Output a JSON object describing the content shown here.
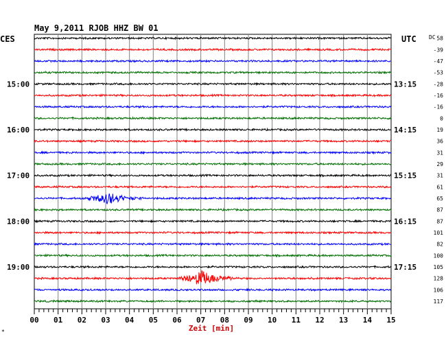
{
  "header": {
    "title": "May 9,2011   RJOB HHZ BW 01",
    "left_tz": "CES",
    "right_tz": "UTC",
    "dc_label": "DC",
    "footer_mark": "*"
  },
  "chart_data": {
    "type": "line",
    "title": "May 9,2011   RJOB HHZ BW 01",
    "xlabel": "Zeit [min]",
    "ylabel": "",
    "xlim": [
      0,
      15
    ],
    "x_ticks": [
      "00",
      "01",
      "02",
      "03",
      "04",
      "05",
      "06",
      "07",
      "08",
      "09",
      "10",
      "11",
      "12",
      "13",
      "14",
      "15"
    ],
    "grid": true,
    "trace_colors": [
      "#000000",
      "#ff0000",
      "#0000ff",
      "#007000"
    ],
    "left_time_labels": [
      {
        "row": 4,
        "label": "15:00"
      },
      {
        "row": 8,
        "label": "16:00"
      },
      {
        "row": 12,
        "label": "17:00"
      },
      {
        "row": 16,
        "label": "18:00"
      },
      {
        "row": 20,
        "label": "19:00"
      }
    ],
    "right_time_labels": [
      {
        "row": 0,
        "label": "UTC"
      },
      {
        "row": 4,
        "label": "13:15"
      },
      {
        "row": 8,
        "label": "14:15"
      },
      {
        "row": 12,
        "label": "15:15"
      },
      {
        "row": 16,
        "label": "16:15"
      },
      {
        "row": 20,
        "label": "17:15"
      }
    ],
    "dc_values": [
      "58",
      "-39",
      "-47",
      "-53",
      "-28",
      "-16",
      "-16",
      "0",
      "19",
      "36",
      "31",
      "29",
      "31",
      "61",
      "65",
      "87",
      "87",
      "101",
      "82",
      "100",
      "105",
      "128",
      "106",
      "117"
    ],
    "events": [
      {
        "row": 14,
        "start_min": 1.9,
        "peak_min": 3.2,
        "end_min": 4.6,
        "amplitude": 10
      },
      {
        "row": 21,
        "start_min": 5.9,
        "peak_min": 7.0,
        "end_min": 8.6,
        "amplitude": 14
      }
    ],
    "noise_amplitude": 1.5
  }
}
